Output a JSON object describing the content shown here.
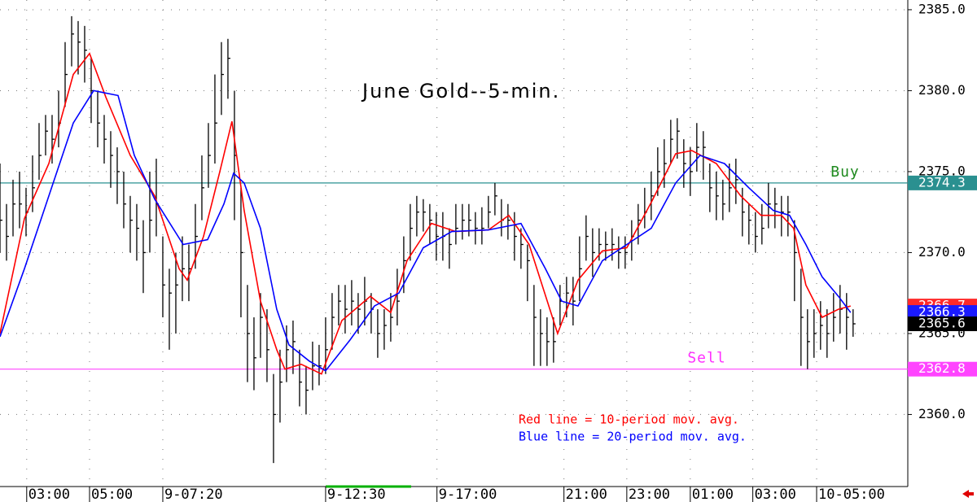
{
  "chart_data": {
    "type": "ohlc",
    "title": "June Gold--5-min.",
    "xlim": [
      0,
      139.4
    ],
    "ylim": [
      2355.7,
      2385.6
    ],
    "xticks": [
      {
        "value": 4.1,
        "label": "03:00"
      },
      {
        "value": 13.75,
        "label": "05:00"
      },
      {
        "value": 25,
        "label": "9-07:20"
      },
      {
        "value": 50,
        "label": "9-12:30"
      },
      {
        "value": 67.1,
        "label": "9-17:00"
      },
      {
        "value": 86.6,
        "label": "21:00"
      },
      {
        "value": 96.25,
        "label": "23:00"
      },
      {
        "value": 106,
        "label": "01:00"
      },
      {
        "value": 115.6,
        "label": "03:00"
      },
      {
        "value": 125.4,
        "label": "10-05:00"
      }
    ],
    "yticks": [
      {
        "value": 2360,
        "label": "2360.0"
      },
      {
        "value": 2365,
        "label": "2365.0"
      },
      {
        "value": 2370,
        "label": "2370.0"
      },
      {
        "value": 2375,
        "label": "2375.0"
      },
      {
        "value": 2380,
        "label": "2380.0"
      },
      {
        "value": 2385,
        "label": "2385.0"
      }
    ],
    "grid": true,
    "bar_color": "#000000",
    "high": [
      2375.5,
      2373,
      2374.5,
      2375,
      2374,
      2376,
      2378,
      2378.5,
      2378.5,
      2380,
      2383,
      2384.6,
      2384.3,
      2384,
      2382,
      2380,
      2378.5,
      2377.5,
      2376.5,
      2375,
      2373.5,
      2373,
      2372,
      2375,
      2375.8,
      2371,
      2369,
      2370,
      2371,
      2370.5,
      2373,
      2376,
      2378,
      2381,
      2383,
      2383.2,
      2380,
      2374,
      2368,
      2366,
      2367.5,
      2366.5,
      2362.5,
      2364,
      2365.5,
      2365.8,
      2364,
      2363,
      2364.5,
      2364.3,
      2366,
      2367.5,
      2368,
      2368,
      2368.3,
      2367.5,
      2368.5,
      2367.5,
      2366.5,
      2366.5,
      2367.5,
      2369,
      2371,
      2373,
      2373.5,
      2373.3,
      2373,
      2372.5,
      2372.5,
      2371.5,
      2373,
      2373,
      2373,
      2372.5,
      2372.8,
      2373.5,
      2374.3,
      2373.3,
      2373,
      2372.5,
      2371.5,
      2370.5,
      2368,
      2366.5,
      2366,
      2366,
      2368,
      2368.5,
      2368.5,
      2371,
      2372.3,
      2371.5,
      2371.5,
      2371.3,
      2371.5,
      2371,
      2371,
      2372,
      2373,
      2374,
      2375,
      2376.5,
      2377,
      2378.2,
      2378.3,
      2377,
      2376.5,
      2378,
      2377.5,
      2375.5,
      2375,
      2374.5,
      2375.5,
      2375.8,
      2374,
      2373,
      2372.5,
      2373,
      2374.3,
      2374,
      2373.5,
      2373.5,
      2372,
      2369,
      2366.5,
      2366.5,
      2367,
      2366.5,
      2367.5,
      2368,
      2367.5,
      2366.5
    ],
    "low": [
      2370,
      2369.5,
      2371,
      2371.5,
      2371,
      2372.5,
      2374.5,
      2376,
      2375.5,
      2376.5,
      2379,
      2381.5,
      2381,
      2380.5,
      2378,
      2376.5,
      2375.5,
      2374,
      2373,
      2371.5,
      2370,
      2369.5,
      2367.5,
      2370,
      2371,
      2366,
      2364,
      2365,
      2367,
      2367,
      2369,
      2372,
      2374,
      2375.5,
      2378.5,
      2379.5,
      2372,
      2366,
      2362,
      2361.5,
      2363.5,
      2362,
      2357,
      2359.5,
      2362,
      2362.5,
      2360.5,
      2360,
      2361.5,
      2361.8,
      2362.5,
      2364,
      2365.5,
      2365,
      2365.5,
      2365,
      2365.5,
      2365,
      2363.5,
      2364,
      2364.5,
      2365.5,
      2367.5,
      2369.5,
      2371,
      2371.3,
      2370.5,
      2369.5,
      2369.5,
      2369,
      2370.5,
      2370.8,
      2371,
      2370.5,
      2370.5,
      2371.5,
      2372.3,
      2371,
      2370.8,
      2369.5,
      2369,
      2367,
      2363,
      2363,
      2363,
      2363.2,
      2365.5,
      2366,
      2365.5,
      2367,
      2369.5,
      2368.5,
      2369.5,
      2369.5,
      2369.5,
      2369,
      2369,
      2369.5,
      2370.5,
      2371.5,
      2372,
      2373.5,
      2374,
      2375.5,
      2375.8,
      2374,
      2373.5,
      2375,
      2374.5,
      2372.5,
      2372,
      2372,
      2372.5,
      2373,
      2371,
      2370.5,
      2370,
      2370.5,
      2371.5,
      2371.5,
      2371,
      2371,
      2367,
      2363,
      2362.8,
      2363.5,
      2364,
      2363.5,
      2364.5,
      2365,
      2364,
      2364.8
    ],
    "close": [
      2372,
      2371,
      2373,
      2373,
      2372.5,
      2374,
      2376,
      2377.5,
      2377,
      2378,
      2381,
      2383.5,
      2383,
      2382.5,
      2380,
      2378,
      2377,
      2376,
      2375,
      2373,
      2372,
      2371.5,
      2370,
      2372,
      2373,
      2368,
      2367.5,
      2368,
      2369,
      2369,
      2371,
      2374,
      2376,
      2378,
      2381,
      2382,
      2376,
      2370,
      2365,
      2363.5,
      2366,
      2364,
      2360,
      2362,
      2364,
      2364.5,
      2362,
      2361.5,
      2363,
      2363,
      2364,
      2366,
      2367,
      2366.5,
      2367,
      2366.5,
      2367,
      2366.5,
      2365,
      2365.5,
      2366,
      2367,
      2369.5,
      2371.5,
      2372.5,
      2372.5,
      2372,
      2371,
      2371,
      2370.5,
      2371.5,
      2372,
      2372,
      2371.5,
      2371.5,
      2372.5,
      2373.5,
      2372,
      2372,
      2371,
      2370.5,
      2369.5,
      2366,
      2365,
      2364.5,
      2364.5,
      2367,
      2367.5,
      2367,
      2369,
      2371,
      2370,
      2370.5,
      2370.5,
      2370.5,
      2370,
      2370,
      2371,
      2372,
      2372.5,
      2373.5,
      2375,
      2375.5,
      2377,
      2377.5,
      2375.5,
      2375,
      2376.5,
      2376.5,
      2374,
      2373.5,
      2373,
      2374,
      2374.5,
      2372.5,
      2372,
      2371,
      2371.5,
      2373,
      2373,
      2372.5,
      2372.5,
      2370,
      2366,
      2364.5,
      2365,
      2365.5,
      2365,
      2366,
      2366.5,
      2366,
      2365.6
    ],
    "series": [
      {
        "color": "#ff0000",
        "x": [
          0,
          3.75,
          7.5,
          11.25,
          13.75,
          16.25,
          20,
          23.75,
          27.5,
          28.75,
          31.25,
          33.75,
          35.625,
          37.5,
          40,
          42.5,
          43.75,
          46.25,
          49.375,
          52.5,
          56.875,
          60,
          62.5,
          66.25,
          70,
          75,
          78.125,
          81.25,
          85.625,
          88.75,
          92.5,
          96.25,
          100,
          103.75,
          106.25,
          110,
          113.75,
          116.875,
          120,
          121.875,
          123.75,
          126.25,
          128.75,
          130.625
        ],
        "values": [
          2365,
          2372.1,
          2375.5,
          2381,
          2382.3,
          2379.6,
          2376,
          2373.5,
          2369,
          2368.3,
          2371,
          2375,
          2378.1,
          2372.6,
          2367,
          2364,
          2362.8,
          2363.1,
          2362.5,
          2365.8,
          2367.3,
          2366.3,
          2369.5,
          2371.8,
          2371.3,
          2371.4,
          2372.3,
          2370.5,
          2365,
          2368.3,
          2370.1,
          2370.3,
          2373.1,
          2376.1,
          2376.3,
          2375.5,
          2373.5,
          2372.3,
          2372.3,
          2371.5,
          2368,
          2366,
          2366.5,
          2366.7
        ]
      },
      {
        "color": "#0000ff",
        "x": [
          0,
          3.75,
          7.5,
          11.25,
          14.375,
          18.125,
          20.625,
          23.75,
          28.125,
          31.875,
          34.375,
          35.875,
          37.5,
          40,
          42.5,
          44.375,
          47.5,
          50,
          53.75,
          57.5,
          61.25,
          65,
          69.375,
          75,
          80,
          83.75,
          86.25,
          88.75,
          92.5,
          96.25,
          100,
          103.75,
          107.5,
          111.25,
          115,
          118.75,
          121.25,
          123.75,
          126.25,
          128.75,
          130.625
        ],
        "values": [
          2364.8,
          2369,
          2373.5,
          2378,
          2380,
          2379.7,
          2376,
          2373.3,
          2370.5,
          2370.8,
          2373,
          2374.9,
          2374.3,
          2371.5,
          2366.5,
          2364.3,
          2363.3,
          2362.7,
          2364.6,
          2366.7,
          2367.5,
          2370.3,
          2371.3,
          2371.4,
          2371.8,
          2369,
          2367,
          2366.7,
          2369.5,
          2370.5,
          2371.5,
          2374.3,
          2376,
          2375.5,
          2374,
          2372.6,
          2372.3,
          2370.5,
          2368.5,
          2367.3,
          2366.3
        ]
      }
    ],
    "levels": [
      {
        "label": "Buy",
        "value": 2374.3,
        "color": "#2a9090",
        "label_color": "#1e8a1e"
      },
      {
        "label": "Sell",
        "value": 2362.8,
        "color": "#ff44ff",
        "label_color": "#ff30ff"
      }
    ],
    "price_labels": [
      {
        "value": 2366.7,
        "color": "#ff2a2a"
      },
      {
        "value": 2366.3,
        "color": "#1a1aff"
      },
      {
        "value": 2365.6,
        "color": "#000000"
      }
    ],
    "annotations": [
      {
        "text": "Red line = 10-period mov. avg.",
        "color": "#ff0000"
      },
      {
        "text": "Blue line = 20-period mov. avg.",
        "color": "#0000ff"
      }
    ]
  }
}
